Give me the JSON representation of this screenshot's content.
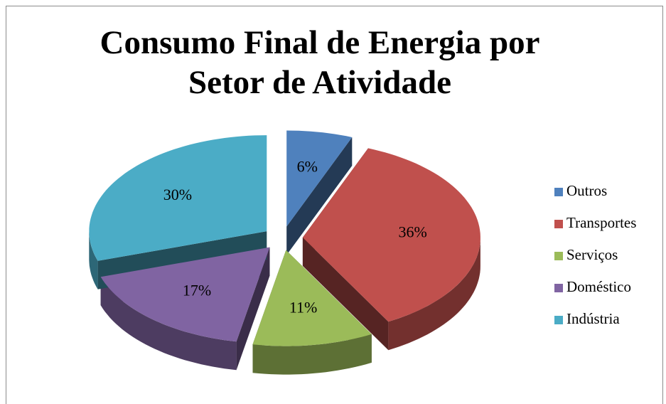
{
  "chart_data": {
    "type": "pie3d",
    "title": "Consumo Final de Energia por Setor de Atividade",
    "categories": [
      "Outros",
      "Transportes",
      "Serviços",
      "Doméstico",
      "Indústria"
    ],
    "values": [
      6,
      36,
      11,
      17,
      30
    ],
    "value_labels": [
      "6%",
      "36%",
      "11%",
      "17%",
      "30%"
    ],
    "colors": [
      "#4f81bd",
      "#c0504d",
      "#9bbb59",
      "#8064a2",
      "#4bacc6"
    ],
    "legend": "right"
  }
}
